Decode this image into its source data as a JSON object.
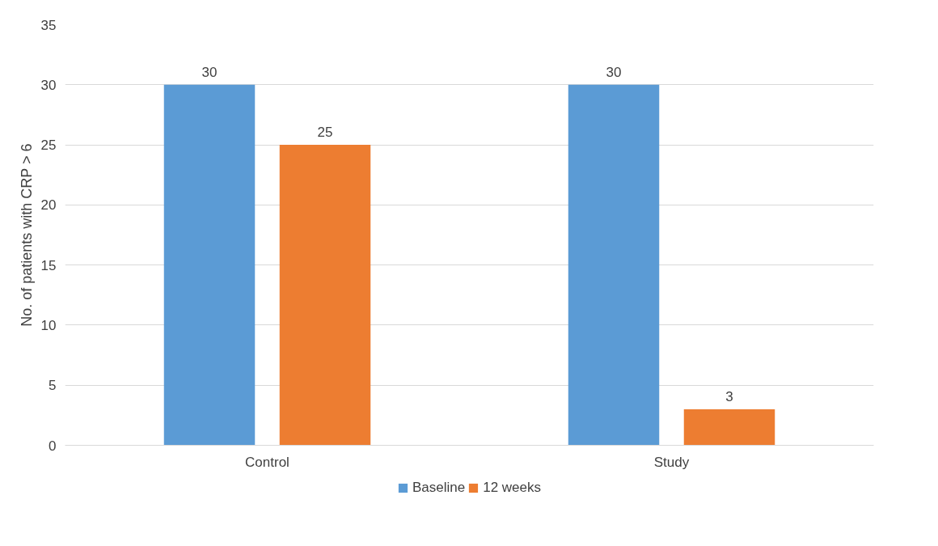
{
  "chart_data": {
    "type": "bar",
    "ylabel": "No. of patients with CRP > 6",
    "categories": [
      "Control",
      "Study"
    ],
    "series": [
      {
        "name": "Baseline",
        "color": "#5b9bd5",
        "values": [
          30,
          30
        ]
      },
      {
        "name": "12 weeks",
        "color": "#ed7d31",
        "values": [
          25,
          3
        ]
      }
    ],
    "ylim": [
      0,
      35
    ],
    "yticks": [
      0,
      5,
      10,
      15,
      20,
      25,
      30,
      35
    ],
    "grid": "y",
    "legend": "bottom",
    "data_labels": true
  }
}
